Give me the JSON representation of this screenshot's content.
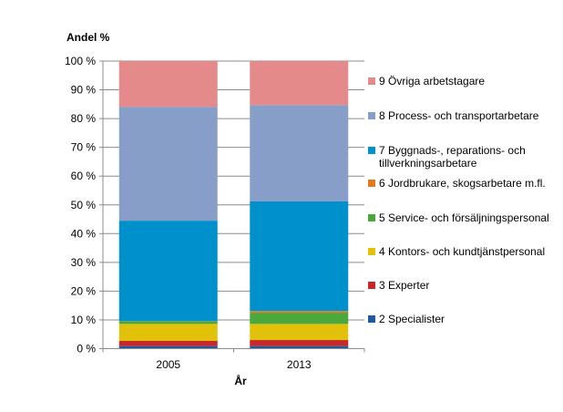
{
  "chart_data": {
    "type": "stacked-bar",
    "ylabel": "Andel %",
    "xlabel": "År",
    "categories": [
      "2005",
      "2013"
    ],
    "ylim": [
      0,
      100
    ],
    "yticks": [
      "0 %",
      "10 %",
      "20 %",
      "30 %",
      "40 %",
      "50 %",
      "60 %",
      "70 %",
      "80 %",
      "90 %",
      "100 %"
    ],
    "grid": true,
    "legend_position": "right",
    "series": [
      {
        "name": "2 Specialister",
        "color": "#1f5a9e",
        "values": [
          0.9,
          0.9
        ]
      },
      {
        "name": "3 Experter",
        "color": "#c8282c",
        "values": [
          1.8,
          2.1
        ]
      },
      {
        "name": "4 Kontors- och kundtjänstpersonal",
        "color": "#e2c10a",
        "values": [
          5.9,
          5.6
        ]
      },
      {
        "name": "5 Service- och försäljningspersonal",
        "color": "#4aa83c",
        "values": [
          0.9,
          3.9
        ]
      },
      {
        "name": "6 Jordbrukare, skogsarbetare m.fl.",
        "color": "#e07b1f",
        "values": [
          0.1,
          0.6
        ]
      },
      {
        "name": "7 Byggnads-, reparations- och tillverkningsarbetare",
        "color": "#0090cc",
        "values": [
          34.9,
          38.1
        ]
      },
      {
        "name": "8 Process- och transportarbetare",
        "color": "#879ec8",
        "values": [
          39.6,
          33.5
        ]
      },
      {
        "name": "9 Övriga arbetstagare",
        "color": "#e48a8a",
        "values": [
          15.9,
          15.3
        ]
      }
    ]
  }
}
